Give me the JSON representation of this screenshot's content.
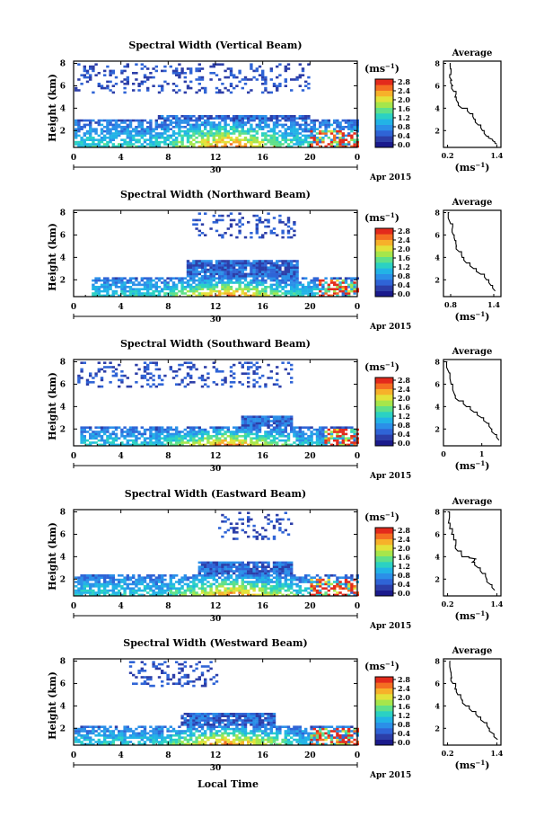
{
  "figure": {
    "xlabel_bottom": "Local Time",
    "date_label": "Apr 2015",
    "date_day": "30",
    "ylabel": "Height (km)",
    "x_ticks": [
      "0",
      "4",
      "8",
      "12",
      "16",
      "20",
      "0"
    ],
    "y_ticks": [
      "2",
      "4",
      "6",
      "8"
    ],
    "cbar_unit_base": "(ms",
    "cbar_unit_exp": "−1",
    "cbar_unit_close": ")",
    "avg_title": "Average",
    "avg_unit_base": "(ms",
    "avg_unit_exp": "−1",
    "avg_unit_close": ")",
    "cbar_ticks": [
      "0.0",
      "0.4",
      "0.8",
      "1.2",
      "1.6",
      "2.0",
      "2.4",
      "2.8"
    ],
    "cbar_colors": [
      "#1a1a8c",
      "#2c3ea8",
      "#2f64d6",
      "#2b8fe8",
      "#22b3e6",
      "#2bd1c3",
      "#5fe08a",
      "#a6e64b",
      "#e3e23a",
      "#f7b12a",
      "#f46e22",
      "#e32a1c"
    ],
    "colors": {
      "low_blue": "#3b4fc0",
      "mid_cyan": "#2bd1c3",
      "high_red": "#e32a1c",
      "axis": "#000000"
    }
  },
  "chart_data": [
    {
      "type": "heatmap",
      "title": "Spectral Width (Vertical Beam)",
      "xlabel": "Local Time",
      "ylabel": "Height (km)",
      "xlim": [
        0,
        24
      ],
      "ylim": [
        0.5,
        8.2
      ],
      "colorbar_range": [
        0.0,
        2.8
      ],
      "layers": {
        "lower_top_km": 3.1,
        "lower_start_h": 0,
        "lower_end_h": 24,
        "block_top_km": 3.5,
        "block_start_h": 7,
        "block_end_h": 20,
        "upper_bottom_km": 5.5,
        "upper_start_h": 0,
        "upper_end_h": 20,
        "core_center_h": 13,
        "red_patch_start_h": 20,
        "red_patch_end_h": 24
      },
      "average": {
        "x_ticks": [
          "0.2",
          "1.4"
        ],
        "xlim": [
          0.1,
          1.5
        ],
        "profile": [
          [
            8.0,
            0.25
          ],
          [
            7.5,
            0.27
          ],
          [
            7.0,
            0.28
          ],
          [
            6.5,
            0.3
          ],
          [
            6.0,
            0.32
          ],
          [
            5.5,
            0.35
          ],
          [
            5.0,
            0.38
          ],
          [
            4.5,
            0.45
          ],
          [
            4.0,
            0.55
          ],
          [
            3.5,
            0.75
          ],
          [
            3.0,
            0.85
          ],
          [
            2.5,
            0.95
          ],
          [
            2.0,
            1.05
          ],
          [
            1.5,
            1.15
          ],
          [
            1.2,
            1.3
          ],
          [
            1.0,
            1.35
          ],
          [
            0.8,
            1.4
          ]
        ]
      }
    },
    {
      "type": "heatmap",
      "title": "Spectral Width (Northward Beam)",
      "xlabel": "Local Time",
      "ylabel": "Height (km)",
      "xlim": [
        0,
        24
      ],
      "ylim": [
        0.5,
        8.2
      ],
      "colorbar_range": [
        0.0,
        2.8
      ],
      "layers": {
        "lower_top_km": 2.4,
        "lower_start_h": 1.5,
        "lower_end_h": 24,
        "block_top_km": 3.9,
        "block_start_h": 9.5,
        "block_end_h": 19,
        "upper_bottom_km": 5.8,
        "upper_start_h": 10,
        "upper_end_h": 19,
        "core_center_h": 13,
        "red_patch_start_h": 20.5,
        "red_patch_end_h": 24
      },
      "average": {
        "x_ticks": [
          "0.8",
          "1.4"
        ],
        "xlim": [
          0.7,
          1.5
        ],
        "profile": [
          [
            8.0,
            0.78
          ],
          [
            7.0,
            0.8
          ],
          [
            6.5,
            0.82
          ],
          [
            6.0,
            0.84
          ],
          [
            5.5,
            0.86
          ],
          [
            5.0,
            0.88
          ],
          [
            4.5,
            0.92
          ],
          [
            4.0,
            0.96
          ],
          [
            3.5,
            1.02
          ],
          [
            3.0,
            1.12
          ],
          [
            2.5,
            1.22
          ],
          [
            2.0,
            1.3
          ],
          [
            1.5,
            1.36
          ],
          [
            1.0,
            1.42
          ]
        ]
      }
    },
    {
      "type": "heatmap",
      "title": "Spectral Width (Southward Beam)",
      "xlabel": "Local Time",
      "ylabel": "Height (km)",
      "xlim": [
        0,
        24
      ],
      "ylim": [
        0.5,
        8.2
      ],
      "colorbar_range": [
        0.0,
        2.8
      ],
      "layers": {
        "lower_top_km": 2.3,
        "lower_start_h": 0.5,
        "lower_end_h": 24,
        "block_top_km": 3.3,
        "block_start_h": 14,
        "block_end_h": 18.5,
        "upper_bottom_km": 5.8,
        "upper_start_h": 0,
        "upper_end_h": 18.5,
        "core_center_h": 13,
        "red_patch_start_h": 21,
        "red_patch_end_h": 24
      },
      "average": {
        "x_ticks": [
          "0",
          "1"
        ],
        "xlim": [
          0,
          1.5
        ],
        "profile": [
          [
            8.0,
            0.1
          ],
          [
            7.0,
            0.15
          ],
          [
            6.0,
            0.2
          ],
          [
            5.0,
            0.3
          ],
          [
            4.5,
            0.4
          ],
          [
            4.0,
            0.6
          ],
          [
            3.5,
            0.8
          ],
          [
            3.0,
            1.0
          ],
          [
            2.5,
            1.15
          ],
          [
            2.0,
            1.25
          ],
          [
            1.5,
            1.35
          ],
          [
            1.0,
            1.45
          ]
        ]
      }
    },
    {
      "type": "heatmap",
      "title": "Spectral Width (Eastward Beam)",
      "xlabel": "Local Time",
      "ylabel": "Height (km)",
      "xlim": [
        0,
        24
      ],
      "ylim": [
        0.5,
        8.2
      ],
      "colorbar_range": [
        0.0,
        2.8
      ],
      "layers": {
        "lower_top_km": 2.6,
        "lower_start_h": 0,
        "lower_end_h": 24,
        "block_top_km": 3.6,
        "block_start_h": 10.5,
        "block_end_h": 18.5,
        "upper_bottom_km": 5.6,
        "upper_start_h": 12,
        "upper_end_h": 18.5,
        "core_center_h": 13.5,
        "red_patch_start_h": 20,
        "red_patch_end_h": 24
      },
      "average": {
        "x_ticks": [
          "0.2",
          "1.4"
        ],
        "xlim": [
          0.1,
          1.5
        ],
        "profile": [
          [
            8.0,
            0.2
          ],
          [
            7.0,
            0.22
          ],
          [
            6.5,
            0.25
          ],
          [
            6.0,
            0.3
          ],
          [
            5.5,
            0.35
          ],
          [
            5.0,
            0.4
          ],
          [
            4.5,
            0.45
          ],
          [
            4.0,
            0.55
          ],
          [
            3.8,
            0.9
          ],
          [
            3.5,
            0.8
          ],
          [
            3.0,
            0.95
          ],
          [
            2.5,
            1.05
          ],
          [
            2.0,
            1.15
          ],
          [
            1.5,
            1.25
          ],
          [
            1.0,
            1.35
          ]
        ]
      }
    },
    {
      "type": "heatmap",
      "title": "Spectral Width (Westward Beam)",
      "xlabel": "Local Time",
      "ylabel": "Height (km)",
      "xlim": [
        0,
        24
      ],
      "ylim": [
        0.5,
        8.2
      ],
      "colorbar_range": [
        0.0,
        2.8
      ],
      "layers": {
        "lower_top_km": 2.4,
        "lower_start_h": 0,
        "lower_end_h": 24,
        "block_top_km": 3.5,
        "block_start_h": 9,
        "block_end_h": 17,
        "upper_bottom_km": 5.8,
        "upper_start_h": 4.5,
        "upper_end_h": 12,
        "core_center_h": 13,
        "red_patch_start_h": 20,
        "red_patch_end_h": 24
      },
      "average": {
        "x_ticks": [
          "0.2",
          "1.4"
        ],
        "xlim": [
          0.1,
          1.5
        ],
        "profile": [
          [
            8.0,
            0.25
          ],
          [
            7.0,
            0.28
          ],
          [
            6.5,
            0.3
          ],
          [
            6.0,
            0.33
          ],
          [
            5.5,
            0.38
          ],
          [
            5.0,
            0.45
          ],
          [
            4.5,
            0.55
          ],
          [
            4.0,
            0.65
          ],
          [
            3.5,
            0.8
          ],
          [
            3.0,
            0.95
          ],
          [
            2.5,
            1.1
          ],
          [
            2.0,
            1.2
          ],
          [
            1.5,
            1.32
          ],
          [
            1.0,
            1.42
          ]
        ]
      }
    }
  ]
}
